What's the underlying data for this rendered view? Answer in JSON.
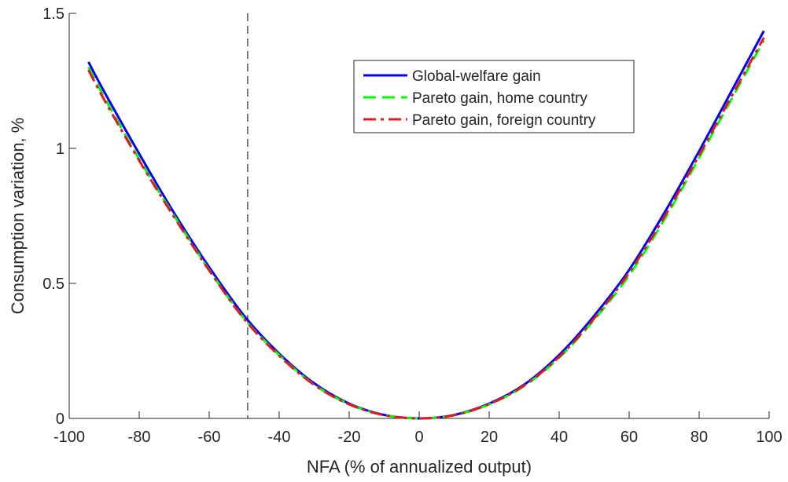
{
  "chart_data": {
    "type": "line",
    "title": "",
    "xlabel": "NFA (% of annualized output)",
    "ylabel": "Consumption variation, %",
    "xlim": [
      -100,
      100
    ],
    "ylim": [
      0,
      1.5
    ],
    "xticks": [
      -100,
      -80,
      -60,
      -40,
      -20,
      0,
      20,
      40,
      60,
      80,
      100
    ],
    "yticks": [
      0,
      0.5,
      1,
      1.5
    ],
    "xtick_labels": [
      "-100",
      "-80",
      "-60",
      "-40",
      "-20",
      "0",
      "20",
      "40",
      "60",
      "80",
      "100"
    ],
    "ytick_labels": [
      "0",
      "0.5",
      "1",
      "1.5"
    ],
    "grid": false,
    "legend_position": "top-right",
    "reference_line": {
      "x": -49,
      "style": "dashed",
      "color": "#000000"
    },
    "series": [
      {
        "name": "Global-welfare gain",
        "color": "#0000ff",
        "style": "solid",
        "x": [
          -94.5,
          -90,
          -80,
          -70,
          -60,
          -50,
          -40,
          -30,
          -20,
          -10,
          0,
          10,
          20,
          30,
          40,
          50,
          60,
          70,
          80,
          90,
          98.5
        ],
        "y": [
          1.32,
          1.21,
          0.98,
          0.76,
          0.56,
          0.38,
          0.24,
          0.13,
          0.055,
          0.013,
          0.0,
          0.013,
          0.055,
          0.125,
          0.235,
          0.38,
          0.55,
          0.76,
          0.99,
          1.23,
          1.435
        ]
      },
      {
        "name": "Pareto gain, home country",
        "color": "#00ff00",
        "style": "dashed",
        "x": [
          -94.5,
          -90,
          -80,
          -70,
          -60,
          -50,
          -40,
          -30,
          -20,
          -10,
          0,
          10,
          20,
          30,
          40,
          50,
          60,
          70,
          80,
          90,
          98.5
        ],
        "y": [
          1.3,
          1.19,
          0.96,
          0.75,
          0.55,
          0.37,
          0.235,
          0.125,
          0.053,
          0.012,
          0.0,
          0.012,
          0.052,
          0.12,
          0.225,
          0.365,
          0.53,
          0.735,
          0.965,
          1.2,
          1.4
        ]
      },
      {
        "name": "Pareto gain, foreign country",
        "color": "#e31a1c",
        "style": "dashdot",
        "x": [
          -94.5,
          -90,
          -80,
          -70,
          -60,
          -50,
          -40,
          -30,
          -20,
          -10,
          0,
          10,
          20,
          30,
          40,
          50,
          60,
          70,
          80,
          90,
          98.5
        ],
        "y": [
          1.29,
          1.18,
          0.955,
          0.745,
          0.548,
          0.368,
          0.232,
          0.124,
          0.052,
          0.012,
          0.0,
          0.012,
          0.053,
          0.122,
          0.228,
          0.37,
          0.54,
          0.745,
          0.975,
          1.21,
          1.41
        ]
      }
    ]
  }
}
